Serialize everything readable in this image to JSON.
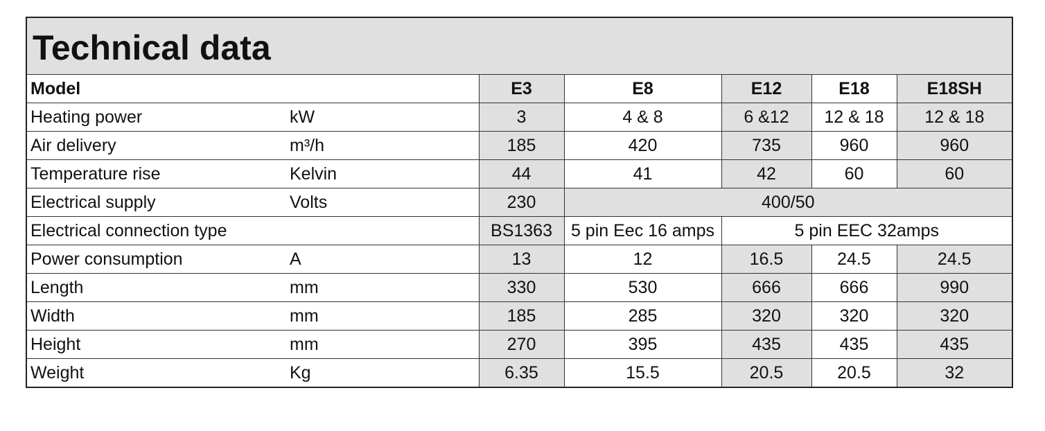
{
  "title": "Technical data",
  "table": {
    "header": {
      "label": "Model",
      "models": [
        "E3",
        "E8",
        "E12",
        "E18",
        "E18SH"
      ]
    },
    "rows": [
      {
        "label": "Heating power",
        "unit": "kW",
        "values": [
          "3",
          "4 & 8",
          "6 &12",
          "12 & 18",
          "12 & 18"
        ]
      },
      {
        "label": "Air delivery",
        "unit": "m³/h",
        "values": [
          "185",
          "420",
          "735",
          "960",
          "960"
        ]
      },
      {
        "label": "Temperature rise",
        "unit": "Kelvin",
        "values": [
          "44",
          "41",
          "42",
          "60",
          "60"
        ]
      },
      {
        "label": "Electrical supply",
        "unit": "Volts",
        "values": [
          "230",
          "400/50"
        ]
      },
      {
        "label": "Electrical connection  type",
        "values": [
          "BS1363",
          "5 pin Eec 16 amps",
          "5 pin EEC 32amps"
        ]
      },
      {
        "label": "Power consumption",
        "unit": "A",
        "values": [
          "13",
          "12",
          "16.5",
          "24.5",
          "24.5"
        ]
      },
      {
        "label": "Length",
        "unit": "mm",
        "values": [
          "330",
          "530",
          "666",
          "666",
          "990"
        ]
      },
      {
        "label": "Width",
        "unit": "mm",
        "values": [
          "185",
          "285",
          "320",
          "320",
          "320"
        ]
      },
      {
        "label": "Height",
        "unit": "mm",
        "values": [
          "270",
          "395",
          "435",
          "435",
          "435"
        ]
      },
      {
        "label": "Weight",
        "unit": "Kg",
        "values": [
          "6.35",
          "15.5",
          "20.5",
          "20.5",
          "32"
        ]
      }
    ]
  }
}
